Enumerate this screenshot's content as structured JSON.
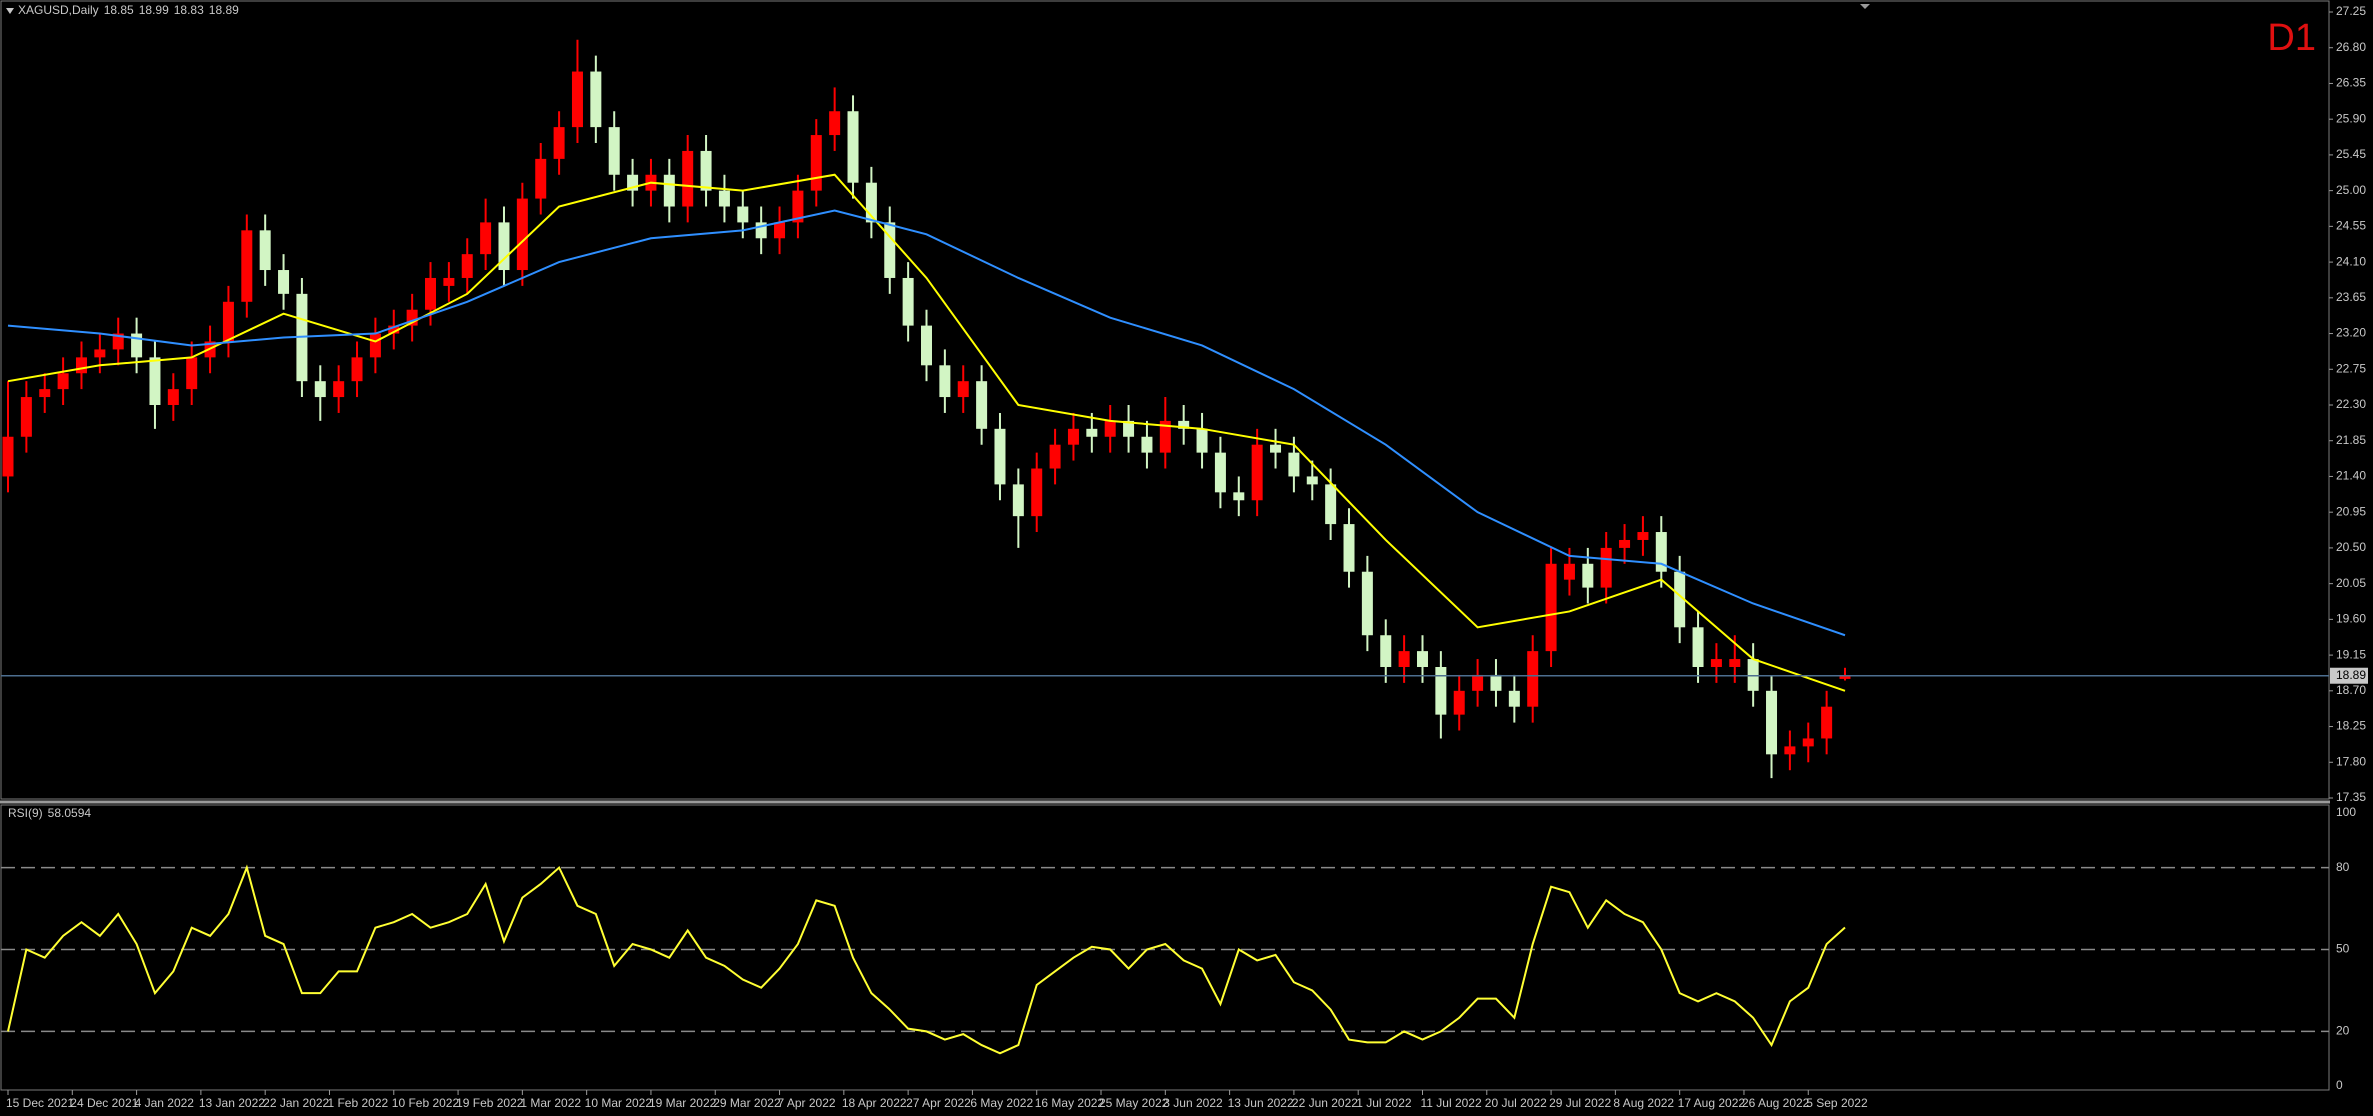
{
  "chart_data": [
    {
      "type": "candlestick",
      "title": "XAGUSD,Daily",
      "timeframe": "D1",
      "up_color": "#ff0000",
      "down_color": "#d2f5c4",
      "price_line_color": "#4d6e8f",
      "x_labels": [
        "15 Dec 2021",
        "24 Dec 2021",
        "4 Jan 2022",
        "13 Jan 2022",
        "22 Jan 2022",
        "1 Feb 2022",
        "10 Feb 2022",
        "19 Feb 2022",
        "1 Mar 2022",
        "10 Mar 2022",
        "19 Mar 2022",
        "29 Mar 2022",
        "7 Apr 2022",
        "18 Apr 2022",
        "27 Apr 2022",
        "6 May 2022",
        "16 May 2022",
        "25 May 2022",
        "3 Jun 2022",
        "13 Jun 2022",
        "22 Jun 2022",
        "1 Jul 2022",
        "11 Jul 2022",
        "20 Jul 2022",
        "29 Jul 2022",
        "8 Aug 2022",
        "17 Aug 2022",
        "26 Aug 2022",
        "5 Sep 2022"
      ],
      "open": [
        21.4,
        21.9,
        22.4,
        22.5,
        22.7,
        22.9,
        23.0,
        23.2,
        22.9,
        22.3,
        22.5,
        22.9,
        23.1,
        23.6,
        24.5,
        24.0,
        23.7,
        22.6,
        22.4,
        22.6,
        22.9,
        23.2,
        23.3,
        23.5,
        23.8,
        23.9,
        24.2,
        24.6,
        24.0,
        24.9,
        25.4,
        25.8,
        26.5,
        25.8,
        25.2,
        25.0,
        25.2,
        24.8,
        25.5,
        25.0,
        24.8,
        24.6,
        24.4,
        24.6,
        25.0,
        25.7,
        26.0,
        25.1,
        24.6,
        23.9,
        23.3,
        22.8,
        22.4,
        22.6,
        22.0,
        21.3,
        20.9,
        21.5,
        21.8,
        22.0,
        21.9,
        22.1,
        21.9,
        21.7,
        22.1,
        22.0,
        21.7,
        21.2,
        21.1,
        21.8,
        21.7,
        21.4,
        21.3,
        20.8,
        20.2,
        19.4,
        19.0,
        19.2,
        19.0,
        18.4,
        18.7,
        18.9,
        18.7,
        18.5,
        19.2,
        20.1,
        20.3,
        20.0,
        20.5,
        20.6,
        20.7,
        20.2,
        19.5,
        19.0,
        19.0,
        19.1,
        18.7,
        17.9,
        18.0,
        18.1,
        18.85
      ],
      "high": [
        22.6,
        22.6,
        22.7,
        22.9,
        23.1,
        23.2,
        23.4,
        23.4,
        23.1,
        22.7,
        23.1,
        23.3,
        23.8,
        24.7,
        24.7,
        24.2,
        23.9,
        22.8,
        22.8,
        23.1,
        23.4,
        23.5,
        23.7,
        24.1,
        24.1,
        24.4,
        24.9,
        24.8,
        25.1,
        25.6,
        26.0,
        26.9,
        26.7,
        26.0,
        25.4,
        25.4,
        25.4,
        25.7,
        25.7,
        25.2,
        25.0,
        24.8,
        24.8,
        25.2,
        25.9,
        26.3,
        26.2,
        25.3,
        24.8,
        24.1,
        23.5,
        23.0,
        22.8,
        22.8,
        22.2,
        21.5,
        21.7,
        22.0,
        22.2,
        22.2,
        22.3,
        22.3,
        22.1,
        22.4,
        22.3,
        22.2,
        21.9,
        21.4,
        22.0,
        22.0,
        21.9,
        21.6,
        21.5,
        21.0,
        20.4,
        19.6,
        19.4,
        19.4,
        19.2,
        18.9,
        19.1,
        19.1,
        18.9,
        19.4,
        20.5,
        20.5,
        20.5,
        20.7,
        20.8,
        20.9,
        20.9,
        20.4,
        19.7,
        19.3,
        19.4,
        19.3,
        18.9,
        18.2,
        18.3,
        18.7,
        18.99
      ],
      "low": [
        21.2,
        21.7,
        22.2,
        22.3,
        22.5,
        22.7,
        22.8,
        22.7,
        22.0,
        22.1,
        22.3,
        22.7,
        22.9,
        23.4,
        23.8,
        23.5,
        22.4,
        22.1,
        22.2,
        22.4,
        22.7,
        23.0,
        23.1,
        23.3,
        23.6,
        23.7,
        24.0,
        23.8,
        23.8,
        24.7,
        25.2,
        25.6,
        25.6,
        25.0,
        24.8,
        24.8,
        24.6,
        24.6,
        24.8,
        24.6,
        24.4,
        24.2,
        24.2,
        24.4,
        24.8,
        25.5,
        24.9,
        24.4,
        23.7,
        23.1,
        22.6,
        22.2,
        22.2,
        21.8,
        21.1,
        20.5,
        20.7,
        21.3,
        21.6,
        21.7,
        21.7,
        21.7,
        21.5,
        21.5,
        21.8,
        21.5,
        21.0,
        20.9,
        20.9,
        21.5,
        21.2,
        21.1,
        20.6,
        20.0,
        19.2,
        18.8,
        18.8,
        18.8,
        18.1,
        18.2,
        18.5,
        18.5,
        18.3,
        18.3,
        19.0,
        19.9,
        19.8,
        19.8,
        20.3,
        20.4,
        20.0,
        19.3,
        18.8,
        18.8,
        18.8,
        18.5,
        17.6,
        17.7,
        17.8,
        17.9,
        18.83
      ],
      "close": [
        21.9,
        22.4,
        22.5,
        22.7,
        22.9,
        23.0,
        23.2,
        22.9,
        22.3,
        22.5,
        22.9,
        23.1,
        23.6,
        24.5,
        24.0,
        23.7,
        22.6,
        22.4,
        22.6,
        22.9,
        23.2,
        23.3,
        23.5,
        23.9,
        23.9,
        24.2,
        24.6,
        24.0,
        24.9,
        25.4,
        25.8,
        26.5,
        25.8,
        25.2,
        25.0,
        25.2,
        24.8,
        25.5,
        25.0,
        24.8,
        24.6,
        24.4,
        24.6,
        25.0,
        25.7,
        26.0,
        25.1,
        24.6,
        23.9,
        23.3,
        22.8,
        22.4,
        22.6,
        22.0,
        21.3,
        20.9,
        21.5,
        21.8,
        22.0,
        21.9,
        22.1,
        21.9,
        21.7,
        22.1,
        22.0,
        21.7,
        21.2,
        21.1,
        21.8,
        21.7,
        21.4,
        21.3,
        20.8,
        20.2,
        19.4,
        19.0,
        19.2,
        19.0,
        18.4,
        18.7,
        18.9,
        18.7,
        18.5,
        19.2,
        20.3,
        20.3,
        20.0,
        20.5,
        20.6,
        20.7,
        20.2,
        19.5,
        19.0,
        19.1,
        19.1,
        18.7,
        17.9,
        18.0,
        18.1,
        18.5,
        18.89
      ],
      "lines": [
        {
          "color": "#ffff00",
          "x": [
            0,
            5,
            10,
            15,
            20,
            25,
            30,
            35,
            40,
            45,
            50,
            55,
            60,
            65,
            70,
            75,
            80,
            85,
            90,
            95,
            100
          ],
          "values": [
            22.6,
            22.8,
            22.9,
            23.45,
            23.1,
            23.7,
            24.8,
            25.1,
            25.0,
            25.2,
            23.9,
            22.3,
            22.1,
            22.0,
            21.8,
            20.6,
            19.5,
            19.7,
            20.1,
            19.1,
            18.7
          ]
        },
        {
          "color": "#2f8fff",
          "x": [
            0,
            5,
            10,
            15,
            20,
            25,
            30,
            35,
            40,
            45,
            50,
            55,
            60,
            65,
            70,
            75,
            80,
            85,
            90,
            95,
            100
          ],
          "values": [
            23.3,
            23.2,
            23.05,
            23.15,
            23.2,
            23.6,
            24.1,
            24.4,
            24.5,
            24.75,
            24.45,
            23.9,
            23.4,
            23.05,
            22.5,
            21.8,
            20.95,
            20.4,
            20.3,
            19.8,
            19.4
          ]
        }
      ],
      "ylim": [
        17.35,
        27.25
      ],
      "yticks": [
        17.35,
        {
          "value": 17.8,
          "label": "17.80"
        },
        18.25,
        {
          "value": 18.7,
          "label": "18.70"
        },
        19.15,
        {
          "value": 19.6,
          "label": "19.60"
        },
        20.05,
        {
          "value": 20.5,
          "label": "20.50"
        },
        20.95,
        {
          "value": 21.4,
          "label": "21.40"
        },
        21.85,
        {
          "value": 22.3,
          "label": "22.30"
        },
        22.75,
        {
          "value": 23.2,
          "label": "23.20"
        },
        23.65,
        {
          "value": 24.1,
          "label": "24.10"
        },
        24.55,
        {
          "value": 25,
          "label": "25.00"
        },
        25.45,
        {
          "value": 25.9,
          "label": "25.90"
        },
        26.35,
        {
          "value": 26.8,
          "label": "26.80"
        },
        27.25
      ]
    },
    {
      "type": "line",
      "title": "RSI(9)",
      "color": "#ffff33",
      "values": [
        20,
        50,
        47,
        55,
        60,
        55,
        63,
        52,
        34,
        42,
        58,
        55,
        63,
        80,
        55,
        52,
        34,
        34,
        42,
        42,
        58,
        60,
        63,
        58,
        60,
        63,
        74,
        53,
        69,
        74,
        80,
        66,
        63,
        44,
        52,
        50,
        47,
        57,
        47,
        44,
        39,
        36,
        43,
        52,
        68,
        66,
        47,
        34,
        28,
        21,
        20,
        17,
        19,
        15,
        12,
        15,
        37,
        42,
        47,
        51,
        50,
        43,
        50,
        52,
        46,
        43,
        30,
        50,
        46,
        48,
        38,
        35,
        28,
        17,
        16,
        16,
        20,
        17,
        20,
        25,
        32,
        32,
        25,
        52,
        73,
        71,
        58,
        68,
        63,
        60,
        50,
        34,
        31,
        34,
        31,
        25,
        15,
        31,
        36,
        52,
        58.0594
      ],
      "ylim": [
        0,
        100
      ],
      "yticks": [
        0,
        20,
        50,
        80,
        100
      ]
    }
  ]
}
